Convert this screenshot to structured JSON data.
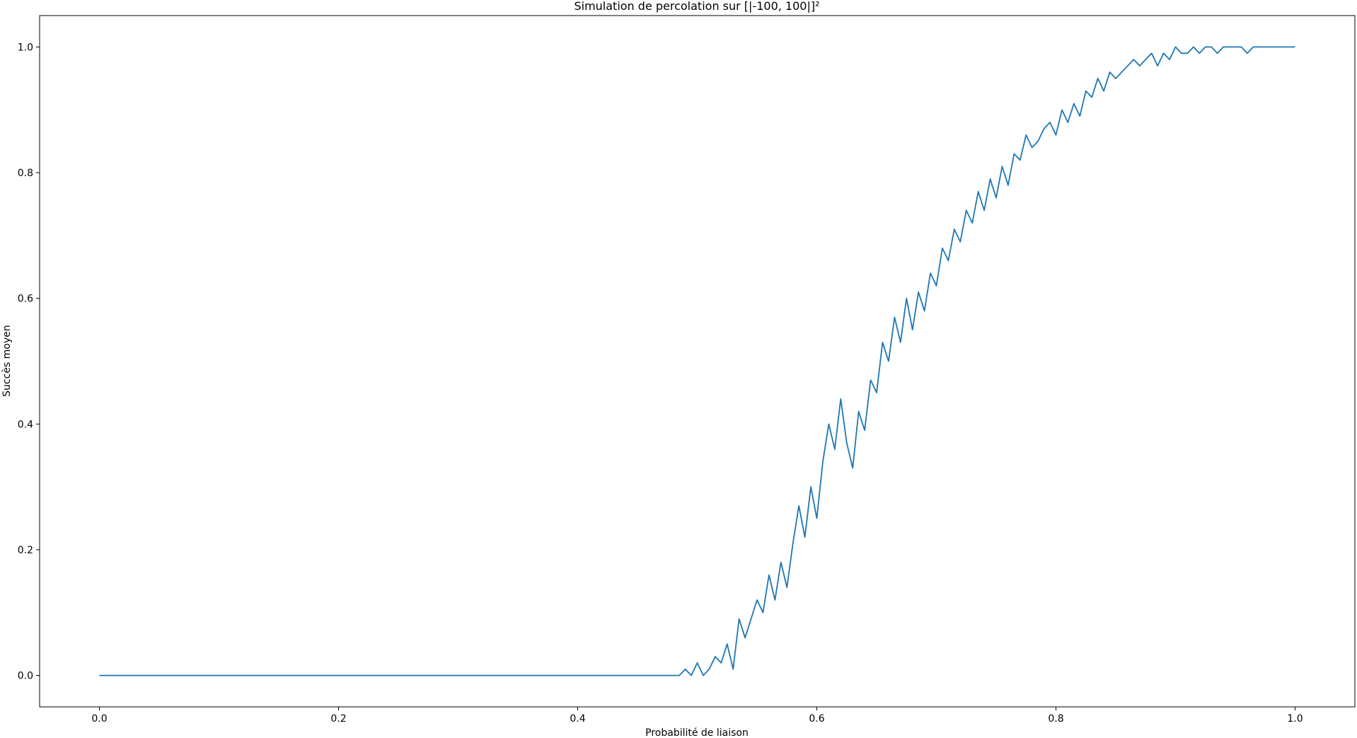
{
  "chart_data": {
    "type": "line",
    "title": "Simulation de percolation sur [|-100, 100|]²",
    "xlabel": "Probabilité de liaison",
    "ylabel": "Succès moyen",
    "xlim": [
      -0.05,
      1.05
    ],
    "ylim": [
      -0.05,
      1.05
    ],
    "grid": false,
    "legend": "none",
    "xticks": [
      0.0,
      0.2,
      0.4,
      0.6,
      0.8,
      1.0
    ],
    "xtick_labels": [
      "0.0",
      "0.2",
      "0.4",
      "0.6",
      "0.8",
      "1.0"
    ],
    "yticks": [
      0.0,
      0.2,
      0.4,
      0.6,
      0.8,
      1.0
    ],
    "ytick_labels": [
      "0.0",
      "0.2",
      "0.4",
      "0.6",
      "0.8",
      "1.0"
    ],
    "series": [
      {
        "color": "#1f77b4",
        "x": [
          0.0,
          0.485,
          0.49,
          0.495,
          0.5,
          0.505,
          0.51,
          0.515,
          0.52,
          0.525,
          0.53,
          0.535,
          0.54,
          0.545,
          0.55,
          0.555,
          0.56,
          0.565,
          0.57,
          0.575,
          0.58,
          0.585,
          0.59,
          0.595,
          0.6,
          0.605,
          0.61,
          0.615,
          0.62,
          0.625,
          0.63,
          0.635,
          0.64,
          0.645,
          0.65,
          0.655,
          0.66,
          0.665,
          0.67,
          0.675,
          0.68,
          0.685,
          0.69,
          0.695,
          0.7,
          0.705,
          0.71,
          0.715,
          0.72,
          0.725,
          0.73,
          0.735,
          0.74,
          0.745,
          0.75,
          0.755,
          0.76,
          0.765,
          0.77,
          0.775,
          0.78,
          0.785,
          0.79,
          0.795,
          0.8,
          0.805,
          0.81,
          0.815,
          0.82,
          0.825,
          0.83,
          0.835,
          0.84,
          0.845,
          0.85,
          0.855,
          0.86,
          0.865,
          0.87,
          0.875,
          0.88,
          0.885,
          0.89,
          0.895,
          0.9,
          0.905,
          0.91,
          0.915,
          0.92,
          0.925,
          0.93,
          0.935,
          0.94,
          0.945,
          0.95,
          0.955,
          0.96,
          0.965,
          0.97,
          0.975,
          0.98,
          0.985,
          0.99,
          0.995,
          1.0
        ],
        "y": [
          0.0,
          0.0,
          0.01,
          0.0,
          0.02,
          0.0,
          0.01,
          0.03,
          0.02,
          0.05,
          0.01,
          0.09,
          0.06,
          0.09,
          0.12,
          0.1,
          0.16,
          0.12,
          0.18,
          0.14,
          0.21,
          0.27,
          0.22,
          0.3,
          0.25,
          0.34,
          0.4,
          0.36,
          0.44,
          0.37,
          0.33,
          0.42,
          0.39,
          0.47,
          0.45,
          0.53,
          0.5,
          0.57,
          0.53,
          0.6,
          0.55,
          0.61,
          0.58,
          0.64,
          0.62,
          0.68,
          0.66,
          0.71,
          0.69,
          0.74,
          0.72,
          0.77,
          0.74,
          0.79,
          0.76,
          0.81,
          0.78,
          0.83,
          0.82,
          0.86,
          0.84,
          0.85,
          0.87,
          0.88,
          0.86,
          0.9,
          0.88,
          0.91,
          0.89,
          0.93,
          0.92,
          0.95,
          0.93,
          0.96,
          0.95,
          0.96,
          0.97,
          0.98,
          0.97,
          0.98,
          0.99,
          0.97,
          0.99,
          0.98,
          1.0,
          0.99,
          0.99,
          1.0,
          0.99,
          1.0,
          1.0,
          0.99,
          1.0,
          1.0,
          1.0,
          1.0,
          0.99,
          1.0,
          1.0,
          1.0,
          1.0,
          1.0,
          1.0,
          1.0,
          1.0
        ]
      }
    ]
  }
}
